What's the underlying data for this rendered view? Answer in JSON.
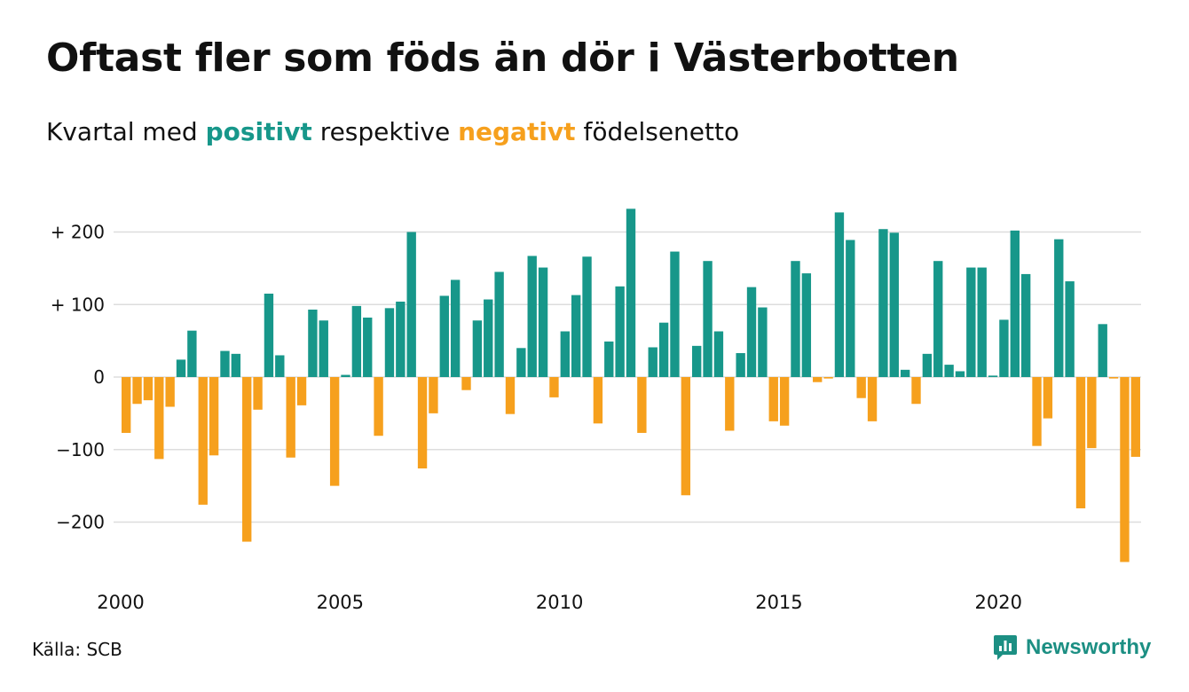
{
  "header": {
    "title": "Oftast fler som föds än dör i Västerbotten",
    "subtitle_prefix": "Kvartal med",
    "subtitle_positive": "positivt",
    "subtitle_middle": "respektive",
    "subtitle_negative": "negativt",
    "subtitle_suffix": "födelsenetto"
  },
  "footer": {
    "source": "Källa: SCB",
    "logo_text": "Newsworthy",
    "logo_icon": "newsworthy-chart-icon"
  },
  "colors": {
    "positive": "#17978a",
    "negative": "#f6a01d",
    "grid": "#dddddd",
    "text": "#111111"
  },
  "chart_data": {
    "type": "bar",
    "ylim": [
      -255,
      232
    ],
    "yticks": [
      200,
      100,
      0,
      -100,
      -200
    ],
    "ytick_labels": [
      "+ 200",
      "+ 100",
      "0",
      "−100",
      "−200"
    ],
    "xticks": [
      2000,
      2005,
      2010,
      2015,
      2020
    ],
    "start_year": 2000,
    "grid": true,
    "legend": "none",
    "values": [
      -77,
      -37,
      -32,
      -113,
      -41,
      24,
      64,
      -176,
      -108,
      36,
      32,
      -227,
      -45,
      115,
      30,
      -111,
      -39,
      93,
      78,
      -150,
      3,
      98,
      82,
      -81,
      95,
      104,
      200,
      -126,
      -50,
      112,
      134,
      -18,
      78,
      107,
      145,
      -51,
      40,
      167,
      151,
      -28,
      63,
      113,
      166,
      -64,
      49,
      125,
      232,
      -77,
      41,
      75,
      173,
      -163,
      43,
      160,
      63,
      -74,
      33,
      124,
      96,
      -61,
      -67,
      160,
      143,
      -7,
      -2,
      227,
      189,
      -29,
      -61,
      204,
      199,
      10,
      -37,
      32,
      160,
      17,
      8,
      151,
      151,
      2,
      79,
      202,
      142,
      -95,
      -57,
      190,
      132,
      -181,
      -98,
      73,
      -2,
      -255,
      -110
    ]
  }
}
